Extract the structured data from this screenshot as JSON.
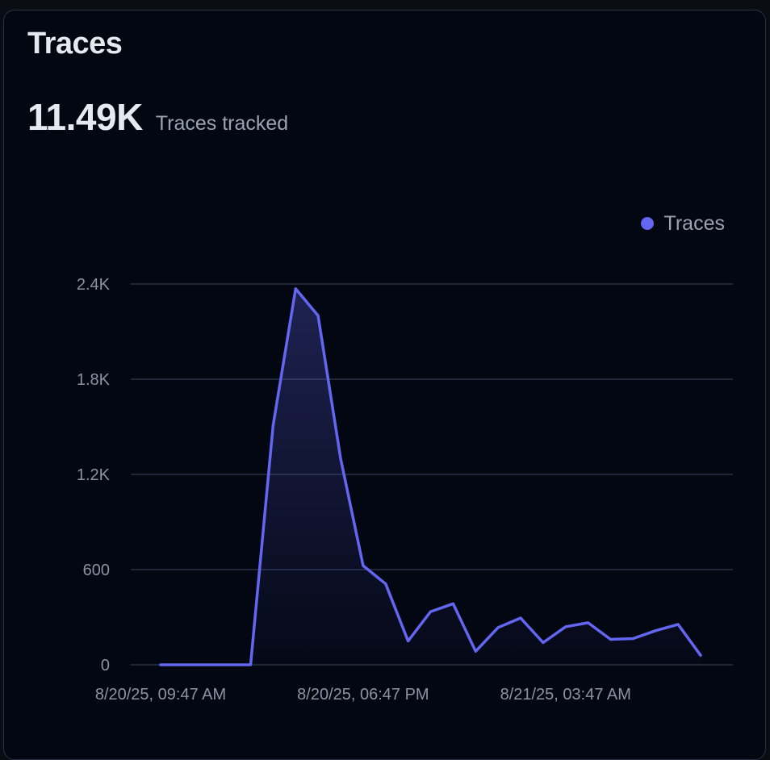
{
  "card": {
    "title": "Traces",
    "metric_value": "11.49K",
    "metric_label": "Traces tracked"
  },
  "colors": {
    "background": "#030712",
    "series": "#6366f1",
    "grid": "#283244",
    "text_muted": "#8b93a3"
  },
  "chart_data": {
    "type": "area",
    "title": "Traces",
    "legend_position": "top-right",
    "grid": true,
    "ylim": [
      0,
      2400
    ],
    "y_ticks": [
      0,
      600,
      1200,
      1800,
      2400
    ],
    "y_tick_labels": [
      "0",
      "600",
      "1.2K",
      "1.8K",
      "2.4K"
    ],
    "x_tick_labels": [
      {
        "index": 0,
        "label": "8/20/25, 09:47 AM"
      },
      {
        "index": 9,
        "label": "8/20/25, 06:47 PM"
      },
      {
        "index": 18,
        "label": "8/21/25, 03:47 AM"
      }
    ],
    "x": [
      "8/20/25, 09:47 AM",
      "8/20/25, 10:47 AM",
      "8/20/25, 11:47 AM",
      "8/20/25, 12:47 PM",
      "8/20/25, 01:47 PM",
      "8/20/25, 02:47 PM",
      "8/20/25, 03:47 PM",
      "8/20/25, 04:47 PM",
      "8/20/25, 05:47 PM",
      "8/20/25, 06:47 PM",
      "8/20/25, 07:47 PM",
      "8/20/25, 08:47 PM",
      "8/20/25, 09:47 PM",
      "8/20/25, 10:47 PM",
      "8/20/25, 11:47 PM",
      "8/21/25, 12:47 AM",
      "8/21/25, 01:47 AM",
      "8/21/25, 02:47 AM",
      "8/21/25, 03:47 AM",
      "8/21/25, 04:47 AM",
      "8/21/25, 05:47 AM",
      "8/21/25, 06:47 AM",
      "8/21/25, 07:47 AM",
      "8/21/25, 08:47 AM",
      "8/21/25, 09:47 AM"
    ],
    "series": [
      {
        "name": "Traces",
        "values": [
          0,
          0,
          0,
          0,
          0,
          1510,
          2370,
          2200,
          1300,
          625,
          510,
          150,
          335,
          385,
          85,
          235,
          295,
          140,
          240,
          265,
          160,
          165,
          215,
          255,
          60
        ]
      }
    ]
  }
}
